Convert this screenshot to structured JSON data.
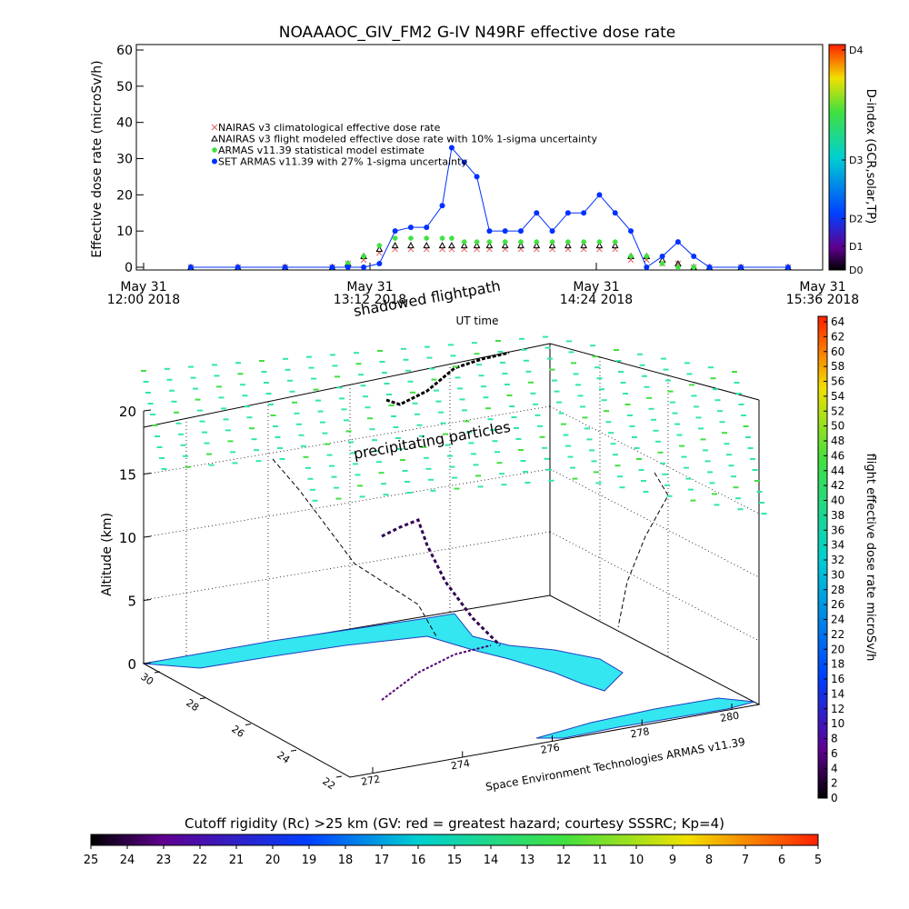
{
  "chart_data": [
    {
      "type": "line",
      "title": "NOAAAOC_GIV_FM2 G-IV   N49RF  effective dose rate",
      "ylabel": "Effective dose rate (microSv/h)",
      "xlabel": "UT time",
      "xlim": [
        "2018-05-31T12:00",
        "2018-05-31T15:36"
      ],
      "xticks": [
        {
          "value": "2018-05-31T12:00",
          "label": "May 31\n12:00 2018"
        },
        {
          "value": "2018-05-31T13:12",
          "label": "May 31\n13:12 2018"
        },
        {
          "value": "2018-05-31T14:24",
          "label": "May 31\n14:24 2018"
        },
        {
          "value": "2018-05-31T15:36",
          "label": "May 31\n15:36 2018"
        }
      ],
      "ylim": [
        0,
        60
      ],
      "yticks": [
        0,
        10,
        20,
        30,
        40,
        50,
        60
      ],
      "x": [
        "2018-05-31T12:15",
        "2018-05-31T12:30",
        "2018-05-31T12:45",
        "2018-05-31T13:00",
        "2018-05-31T13:05",
        "2018-05-31T13:10",
        "2018-05-31T13:15",
        "2018-05-31T13:20",
        "2018-05-31T13:25",
        "2018-05-31T13:30",
        "2018-05-31T13:35",
        "2018-05-31T13:38",
        "2018-05-31T13:42",
        "2018-05-31T13:46",
        "2018-05-31T13:50",
        "2018-05-31T13:55",
        "2018-05-31T14:00",
        "2018-05-31T14:05",
        "2018-05-31T14:10",
        "2018-05-31T14:15",
        "2018-05-31T14:20",
        "2018-05-31T14:25",
        "2018-05-31T14:30",
        "2018-05-31T14:35",
        "2018-05-31T14:40",
        "2018-05-31T14:45",
        "2018-05-31T14:50",
        "2018-05-31T14:55",
        "2018-05-31T15:00",
        "2018-05-31T15:10",
        "2018-05-31T15:25"
      ],
      "series": [
        {
          "name": "NAIRAS v3 climatological effective dose rate",
          "color": "#e06060",
          "marker": "x",
          "values": [
            0,
            0,
            0,
            0,
            1,
            2,
            4,
            5,
            5,
            5,
            5,
            5,
            5,
            5,
            5,
            5,
            5,
            5,
            5,
            5,
            5,
            5,
            5,
            2,
            2,
            1,
            1,
            0,
            0,
            0,
            0
          ]
        },
        {
          "name": "NAIRAS v3 flight modeled effective dose rate with 10% 1-sigma uncertainty",
          "color": "#000000",
          "marker": "triangle",
          "values": [
            0,
            0,
            0,
            0,
            1,
            3,
            5,
            6,
            6,
            6,
            6,
            6,
            6,
            6,
            6,
            6,
            6,
            6,
            6,
            6,
            6,
            6,
            6,
            3,
            3,
            2,
            1,
            0,
            0,
            0,
            0
          ]
        },
        {
          "name": "ARMAS v11.39 statistical model estimate",
          "color": "#40e040",
          "marker": "star",
          "values": [
            0,
            0,
            0,
            0,
            1,
            3,
            6,
            8,
            8,
            8,
            8,
            8,
            7,
            7,
            7,
            7,
            7,
            7,
            7,
            7,
            7,
            7,
            7,
            3,
            3,
            1,
            0,
            0,
            0,
            0,
            0
          ]
        },
        {
          "name": "SET ARMAS v11.39 with 27% 1-sigma uncertainty",
          "color": "#0030ff",
          "marker": "circle",
          "values": [
            0,
            0,
            0,
            0,
            0,
            0,
            1,
            10,
            11,
            11,
            17,
            33,
            29,
            25,
            10,
            10,
            10,
            15,
            10,
            15,
            15,
            20,
            15,
            10,
            0,
            3,
            7,
            3,
            0,
            0,
            0
          ]
        }
      ],
      "colorbar": {
        "label": "D-index (GCR,solar,TP)",
        "lim": [
          0,
          60
        ],
        "ticks": [
          {
            "value": 0,
            "label": "D0"
          },
          {
            "value": 6.5,
            "label": "D1"
          },
          {
            "value": 14,
            "label": "D2"
          },
          {
            "value": 30,
            "label": "D3"
          },
          {
            "value": 60,
            "label": "D4"
          }
        ]
      }
    },
    {
      "type": "scatter3d",
      "annotations": [
        "shadowed flightpath",
        "precipitating particles"
      ],
      "zlabel": "Altitude (km)",
      "zlim": [
        0,
        20
      ],
      "zticks": [
        0,
        5,
        10,
        15,
        20
      ],
      "ylim": [
        30,
        22
      ],
      "yticks": [
        30,
        28,
        26,
        24,
        22
      ],
      "xlim": [
        272,
        280
      ],
      "xticks": [
        272,
        274,
        276,
        278,
        280
      ],
      "credit": "Space Environment Technologies ARMAS v11.39",
      "colorbar": {
        "label": "flight effective dose rate microSv/h",
        "lim": [
          0,
          64
        ],
        "ticks": [
          0,
          2,
          4,
          6,
          8,
          10,
          12,
          14,
          16,
          18,
          20,
          22,
          24,
          26,
          28,
          30,
          32,
          34,
          36,
          38,
          40,
          42,
          44,
          46,
          48,
          50,
          52,
          54,
          56,
          58,
          60,
          62,
          64
        ]
      },
      "colorbar2": {
        "label": "Cutoff rigidity (Rc) >25 km (GV: red = greatest hazard; courtesy SSSRC; Kp=4)",
        "lim": [
          25,
          5
        ],
        "ticks": [
          25,
          24,
          23,
          22,
          21,
          20,
          19,
          18,
          17,
          16,
          15,
          14,
          13,
          12,
          11,
          10,
          9,
          8,
          7,
          6,
          5
        ]
      }
    }
  ]
}
